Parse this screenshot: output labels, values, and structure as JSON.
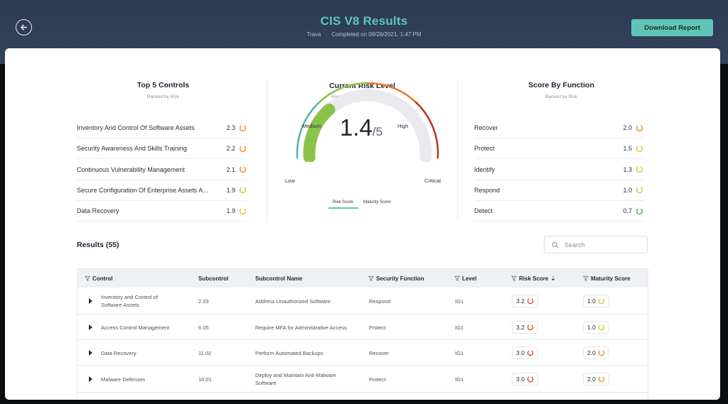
{
  "header": {
    "title": "CIS V8 Results",
    "org": "Trava",
    "separator": "·",
    "completed": "Completed on 08/26/2021, 1:47 PM",
    "download_label": "Download Report"
  },
  "top_controls": {
    "title": "Top 5 Controls",
    "subtitle": "Ranked by Risk",
    "items": [
      {
        "label": "Inventory And Control Of Software Assets",
        "value": "2.3",
        "color": "#f08c2a"
      },
      {
        "label": "Security Awareness And Skills Training",
        "value": "2.2",
        "color": "#f08c2a"
      },
      {
        "label": "Continuous Vulnerability Management",
        "value": "2.1",
        "color": "#f08c2a"
      },
      {
        "label": "Secure Configuration Of Enterprise Assets A...",
        "value": "1.9",
        "color": "#d9c53c"
      },
      {
        "label": "Data Recovery",
        "value": "1.9",
        "color": "#d9c53c"
      }
    ]
  },
  "risk_level": {
    "title": "Current Risk Level",
    "subtitle": "How is this score determined?",
    "score": "1.4",
    "denominator": "/5",
    "score_fraction": 0.28,
    "labels": {
      "low": "Low",
      "medium": "Medium",
      "high": "High",
      "critical": "Critical"
    },
    "toggle": {
      "risk": "Risk Score",
      "maturity": "Maturity Score"
    },
    "colors": {
      "low": "#4db6a4",
      "medium": "#8bc34a",
      "high": "#e8772c",
      "critical": "#b8321f",
      "fill": "#8bc34a"
    }
  },
  "score_by_function": {
    "title": "Score By Function",
    "subtitle": "Ranked by Risk",
    "items": [
      {
        "label": "Recover",
        "value": "2.0",
        "color": "#f08c2a"
      },
      {
        "label": "Protect",
        "value": "1.5",
        "color": "#d9c53c"
      },
      {
        "label": "Identify",
        "value": "1.3",
        "color": "#d9c53c"
      },
      {
        "label": "Respond",
        "value": "1.0",
        "color": "#d9c53c"
      },
      {
        "label": "Detect",
        "value": "0.7",
        "color": "#4caf50"
      }
    ]
  },
  "results": {
    "title": "Results (55)",
    "search_placeholder": "Search",
    "columns": {
      "control": "Control",
      "subcontrol": "Subcontrol",
      "subcontrol_name": "Subcontrol Name",
      "security_function": "Security Function",
      "level": "Level",
      "risk_score": "Risk Score",
      "maturity_score": "Maturity Score"
    },
    "rows": [
      {
        "control": "Inventory and Control of Software Assets",
        "subcontrol": "2.03",
        "name": "Address Unauthorized Software",
        "function": "Respond",
        "level": "IG1",
        "risk": "3.2",
        "risk_color": "#e0452b",
        "maturity": "1.0",
        "maturity_color": "#d9c53c"
      },
      {
        "control": "Access Control Management",
        "subcontrol": "6.05",
        "name": "Require MFA for Administrative Access",
        "function": "Protect",
        "level": "IG1",
        "risk": "3.2",
        "risk_color": "#e0452b",
        "maturity": "1.0",
        "maturity_color": "#d9c53c"
      },
      {
        "control": "Data Recovery",
        "subcontrol": "11.02",
        "name": "Perform Automated Backups",
        "function": "Recover",
        "level": "IG1",
        "risk": "3.0",
        "risk_color": "#e0452b",
        "maturity": "2.0",
        "maturity_color": "#f08c2a"
      },
      {
        "control": "Malware Defenses",
        "subcontrol": "10.01",
        "name": "Deploy and Maintain Anti-Malware Software",
        "function": "Protect",
        "level": "IG1",
        "risk": "3.0",
        "risk_color": "#e0452b",
        "maturity": "2.0",
        "maturity_color": "#f08c2a"
      }
    ]
  }
}
